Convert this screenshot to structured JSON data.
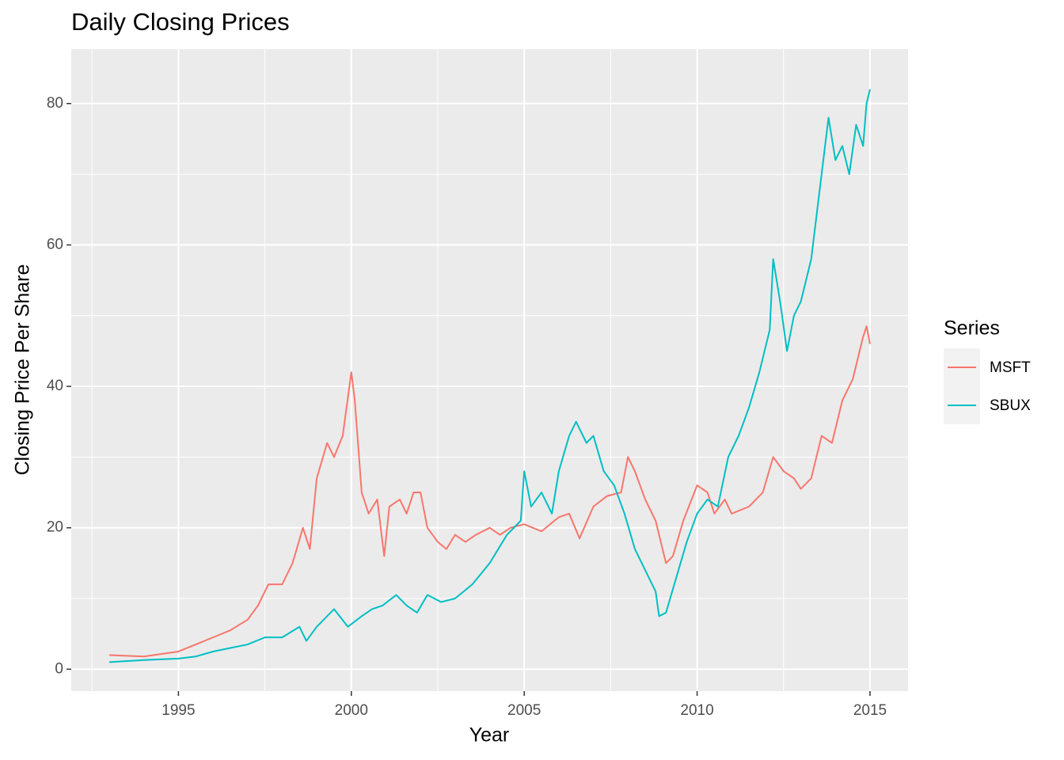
{
  "chart_data": {
    "type": "line",
    "title": "Daily Closing Prices",
    "x_label": "Year",
    "y_label": "Closing Price Per Share",
    "legend_title": "Series",
    "legend_position": "right",
    "grid": true,
    "xlim": [
      1991.9,
      2016.1
    ],
    "xticks": [
      1995,
      2000,
      2005,
      2010,
      2015
    ],
    "x_minor_breaks": [
      1992.5,
      1997.5,
      2002.5,
      2007.5,
      2012.5
    ],
    "ylim": [
      -3.1,
      87.7
    ],
    "yticks": [
      0,
      20,
      40,
      60,
      80
    ],
    "y_minor_breaks": [
      10,
      30,
      50,
      70
    ],
    "series": [
      {
        "name": "MSFT",
        "color": "#F8766D",
        "x": [
          1993.0,
          1994.0,
          1995.0,
          1995.5,
          1996.0,
          1996.5,
          1997.0,
          1997.3,
          1997.6,
          1998.0,
          1998.3,
          1998.6,
          1998.8,
          1999.0,
          1999.3,
          1999.5,
          1999.75,
          2000.0,
          2000.1,
          2000.3,
          2000.5,
          2000.75,
          2000.95,
          2001.1,
          2001.4,
          2001.6,
          2001.8,
          2002.0,
          2002.2,
          2002.5,
          2002.75,
          2003.0,
          2003.3,
          2003.6,
          2004.0,
          2004.3,
          2004.6,
          2005.0,
          2005.5,
          2006.0,
          2006.3,
          2006.6,
          2007.0,
          2007.4,
          2007.8,
          2008.0,
          2008.2,
          2008.5,
          2008.8,
          2009.1,
          2009.3,
          2009.6,
          2010.0,
          2010.3,
          2010.5,
          2010.8,
          2011.0,
          2011.5,
          2011.9,
          2012.2,
          2012.5,
          2012.8,
          2013.0,
          2013.3,
          2013.6,
          2013.9,
          2014.2,
          2014.5,
          2014.8,
          2014.9,
          2015.0
        ],
        "values": [
          2,
          1.8,
          2.5,
          3.5,
          4.5,
          5.5,
          7,
          9,
          12,
          12,
          15,
          20,
          17,
          27,
          32,
          30,
          33,
          42,
          38,
          25,
          22,
          24,
          16,
          23,
          24,
          22,
          25,
          25,
          20,
          18,
          17,
          19,
          18,
          19,
          20,
          19,
          20,
          20.5,
          19.5,
          21.5,
          22,
          18.5,
          23,
          24.5,
          25,
          30,
          28,
          24,
          21,
          15,
          16,
          21,
          26,
          25,
          22,
          24,
          22,
          23,
          25,
          30,
          28,
          27,
          25.5,
          27,
          33,
          32,
          38,
          41,
          47,
          48.5,
          46
        ]
      },
      {
        "name": "SBUX",
        "color": "#00BFC4",
        "x": [
          1993.0,
          1994.0,
          1995.0,
          1995.5,
          1996.0,
          1996.5,
          1997.0,
          1997.5,
          1998.0,
          1998.5,
          1998.7,
          1999.0,
          1999.5,
          1999.9,
          2000.3,
          2000.6,
          2000.9,
          2001.3,
          2001.6,
          2001.9,
          2002.2,
          2002.6,
          2003.0,
          2003.5,
          2004.0,
          2004.5,
          2004.9,
          2005.0,
          2005.2,
          2005.5,
          2005.8,
          2006.0,
          2006.3,
          2006.5,
          2006.8,
          2007.0,
          2007.3,
          2007.6,
          2007.9,
          2008.2,
          2008.5,
          2008.8,
          2008.9,
          2009.1,
          2009.4,
          2009.7,
          2010.0,
          2010.3,
          2010.6,
          2010.9,
          2011.2,
          2011.5,
          2011.8,
          2012.1,
          2012.2,
          2012.4,
          2012.6,
          2012.8,
          2013.0,
          2013.3,
          2013.6,
          2013.8,
          2014.0,
          2014.2,
          2014.4,
          2014.6,
          2014.8,
          2014.9,
          2015.0
        ],
        "values": [
          1,
          1.3,
          1.5,
          1.8,
          2.5,
          3,
          3.5,
          4.5,
          4.5,
          6,
          4,
          6,
          8.5,
          6,
          7.5,
          8.5,
          9,
          10.5,
          9,
          8,
          10.5,
          9.5,
          10,
          12,
          15,
          19,
          21,
          28,
          23,
          25,
          22,
          28,
          33,
          35,
          32,
          33,
          28,
          26,
          22,
          17,
          14,
          11,
          7.5,
          8,
          13,
          18,
          22,
          24,
          23,
          30,
          33,
          37,
          42,
          48,
          58,
          52,
          45,
          50,
          52,
          58,
          70,
          78,
          72,
          74,
          70,
          77,
          74,
          80,
          82
        ]
      }
    ]
  }
}
